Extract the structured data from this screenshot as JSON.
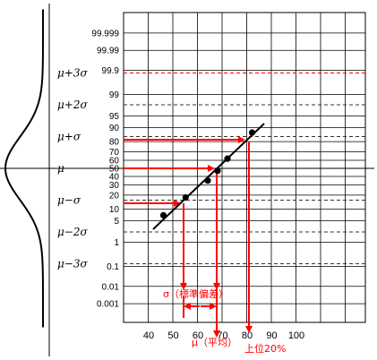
{
  "chart_data": {
    "type": "scatter",
    "ylabel_scale": "normal probability",
    "y_ticks": [
      "99.999",
      "99.99",
      "99.9",
      "99",
      "95",
      "90",
      "80",
      "70",
      "60",
      "50",
      "40",
      "30",
      "20",
      "10",
      "5",
      "1",
      "0.1",
      "0.01",
      "0.001"
    ],
    "x_ticks": [
      "40",
      "50",
      "60",
      "70",
      "80",
      "90",
      "100"
    ],
    "sigma_labels": [
      "μ+3σ",
      "μ+2σ",
      "μ+σ",
      "μ",
      "μ−σ",
      "μ−2σ",
      "μ−3σ"
    ],
    "series": [
      {
        "points": [
          {
            "x": 46,
            "y": 7
          },
          {
            "x": 55,
            "y": 18
          },
          {
            "x": 64,
            "y": 35
          },
          {
            "x": 68,
            "y": 47
          },
          {
            "x": 72,
            "y": 62
          },
          {
            "x": 82,
            "y": 87
          }
        ]
      }
    ],
    "fit_line": {
      "x": [
        40,
        85
      ]
    },
    "annotations": {
      "sigma_label": "σ（標準偏差）",
      "mu_label": "μ（平均）",
      "top20_label": "上位20%"
    },
    "grid": true,
    "colors": {
      "guide": "#ff0000",
      "dash": "#333333",
      "red_dash": "#ff0000"
    }
  }
}
